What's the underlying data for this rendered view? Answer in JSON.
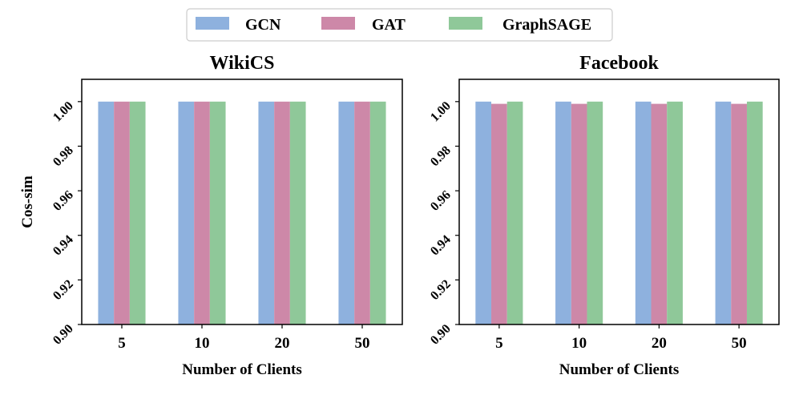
{
  "legend": [
    {
      "name": "GCN",
      "color": "#8eb1de"
    },
    {
      "name": "GAT",
      "color": "#cd88a8"
    },
    {
      "name": "GraphSAGE",
      "color": "#8fc899"
    }
  ],
  "chart_data": [
    {
      "type": "bar",
      "title": "WikiCS",
      "categories": [
        "5",
        "10",
        "20",
        "50"
      ],
      "series": [
        {
          "name": "GCN",
          "values": [
            1.0,
            1.0,
            1.0,
            1.0
          ]
        },
        {
          "name": "GAT",
          "values": [
            1.0,
            1.0,
            1.0,
            1.0
          ]
        },
        {
          "name": "GraphSAGE",
          "values": [
            1.0,
            1.0,
            1.0,
            1.0
          ]
        }
      ],
      "xlabel": "Number of Clients",
      "ylabel": "Cos-sim",
      "ylim": [
        0.9,
        1.01
      ],
      "yticks": [
        "0.90",
        "0.92",
        "0.94",
        "0.96",
        "0.98",
        "1.00"
      ]
    },
    {
      "type": "bar",
      "title": "Facebook",
      "categories": [
        "5",
        "10",
        "20",
        "50"
      ],
      "series": [
        {
          "name": "GCN",
          "values": [
            1.0,
            1.0,
            1.0,
            1.0
          ]
        },
        {
          "name": "GAT",
          "values": [
            0.999,
            0.999,
            0.999,
            0.999
          ]
        },
        {
          "name": "GraphSAGE",
          "values": [
            1.0,
            1.0,
            1.0,
            1.0
          ]
        }
      ],
      "xlabel": "Number of Clients",
      "ylabel": "",
      "ylim": [
        0.9,
        1.01
      ],
      "yticks": [
        "0.90",
        "0.92",
        "0.94",
        "0.96",
        "0.98",
        "1.00"
      ]
    }
  ]
}
